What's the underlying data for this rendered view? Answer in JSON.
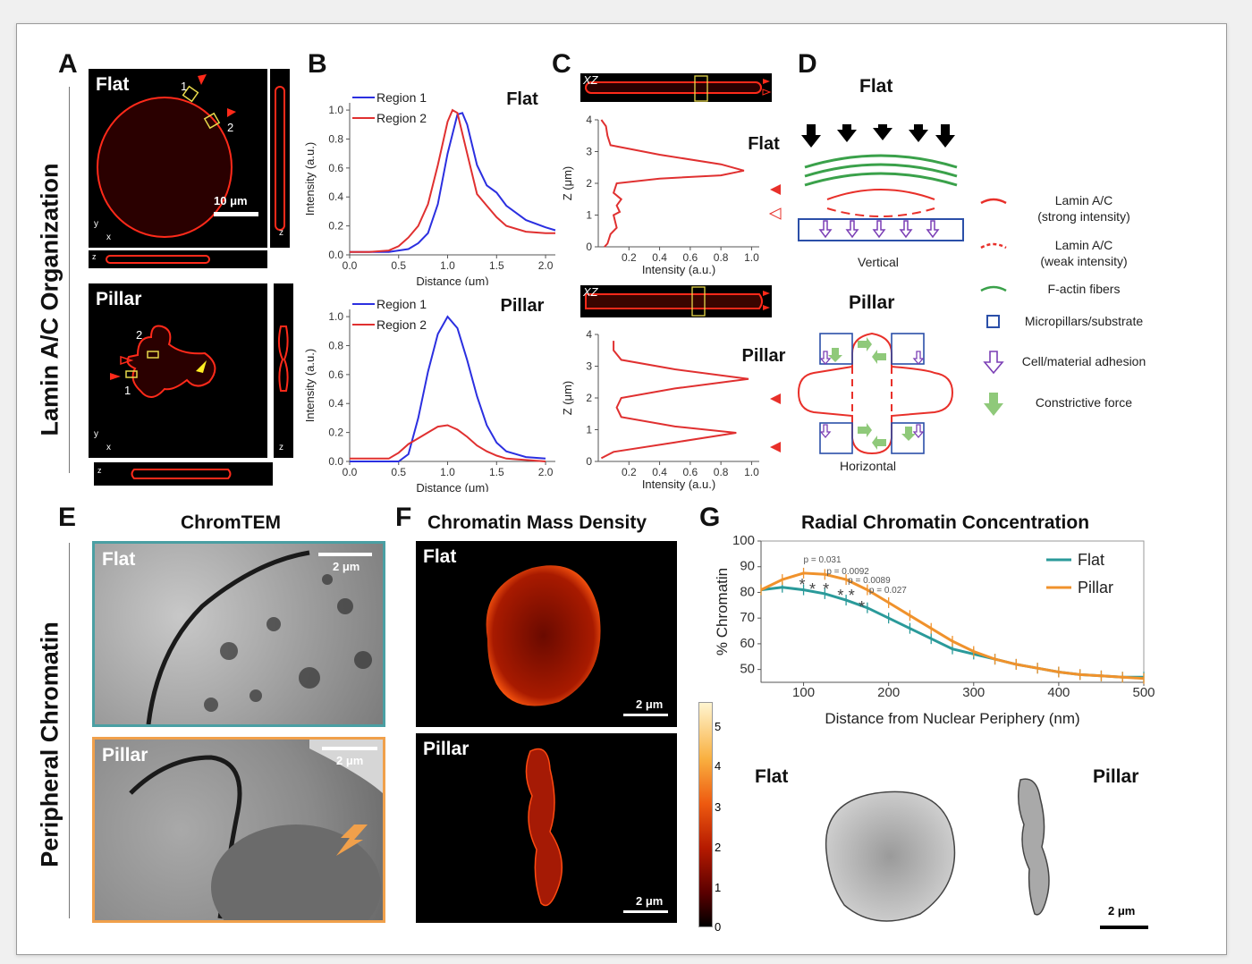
{
  "panels": {
    "A": "A",
    "B": "B",
    "C": "C",
    "D": "D",
    "E": "E",
    "F": "F",
    "G": "G"
  },
  "side_titles": {
    "top": "Lamin A/C Organization",
    "bottom": "Peripheral Chromatin"
  },
  "panel_a": {
    "flat_label": "Flat",
    "pillar_label": "Pillar",
    "scale": "10 μm",
    "region1": "1",
    "region2": "2",
    "axis_x": "x",
    "axis_y": "y",
    "axis_z": "z"
  },
  "panel_c": {
    "xz": "XZ"
  },
  "panel_d": {
    "flat_title": "Flat",
    "pillar_title": "Pillar",
    "vertical": "Vertical",
    "horizontal": "Horizontal",
    "legend": [
      {
        "line1": "Lamin A/C",
        "line2": "(strong intensity)",
        "icon": "solid-red-arc-icon"
      },
      {
        "line1": "Lamin A/C",
        "line2": "(weak intensity)",
        "icon": "dashed-red-arc-icon"
      },
      {
        "line1": "F-actin fibers",
        "line2": "",
        "icon": "green-arc-icon"
      },
      {
        "line1": "Micropillars/substrate",
        "line2": "",
        "icon": "blue-square-icon"
      },
      {
        "line1": "Cell/material adhesion",
        "line2": "",
        "icon": "purple-arrow-icon"
      },
      {
        "line1": "Constrictive force",
        "line2": "",
        "icon": "green-arrow-icon"
      }
    ],
    "colors": {
      "lamin": "#e8302a",
      "actin": "#3aa14a",
      "substrate": "#2b4fa8",
      "adhesion": "#7b3fb5",
      "force": "#8fc97a"
    }
  },
  "panel_e": {
    "title": "ChromTEM",
    "flat_label": "Flat",
    "pillar_label": "Pillar",
    "scale": "2 μm",
    "flat_border": "#4a9fa3",
    "pillar_border": "#f0a04b"
  },
  "panel_f": {
    "title": "Chromatin Mass Density",
    "flat_label": "Flat",
    "pillar_label": "Pillar",
    "scale": "2 μm",
    "colorbar_ticks": [
      "5",
      "4",
      "3",
      "2",
      "1",
      "0"
    ]
  },
  "panel_g": {
    "title": "Radial Chromatin Concentration",
    "flat_label": "Flat",
    "pillar_label": "Pillar",
    "scale": "2 μm"
  },
  "chart_data": [
    {
      "id": "B-flat",
      "type": "line",
      "title": "Flat",
      "xlabel": "Distance (μm)",
      "ylabel": "Intensity (a.u.)",
      "xlim": [
        0,
        2.1
      ],
      "ylim": [
        0,
        1.05
      ],
      "xticks": [
        "0.0",
        "0.5",
        "1.0",
        "1.5",
        "2.0"
      ],
      "yticks": [
        "0.0",
        "0.2",
        "0.4",
        "0.6",
        "0.8",
        "1.0"
      ],
      "legend": "top-left",
      "series": [
        {
          "name": "Region 1",
          "color": "#2b2fe0",
          "x": [
            0,
            0.2,
            0.4,
            0.6,
            0.7,
            0.8,
            0.9,
            1.0,
            1.1,
            1.15,
            1.2,
            1.3,
            1.4,
            1.5,
            1.6,
            1.8,
            2.0,
            2.1
          ],
          "y": [
            0.02,
            0.02,
            0.02,
            0.04,
            0.08,
            0.15,
            0.35,
            0.7,
            0.97,
            0.98,
            0.9,
            0.62,
            0.48,
            0.43,
            0.34,
            0.24,
            0.19,
            0.17
          ]
        },
        {
          "name": "Region 2",
          "color": "#e03030",
          "x": [
            0,
            0.2,
            0.4,
            0.5,
            0.6,
            0.7,
            0.8,
            0.9,
            1.0,
            1.05,
            1.1,
            1.2,
            1.3,
            1.4,
            1.5,
            1.6,
            1.8,
            2.0,
            2.1
          ],
          "y": [
            0.02,
            0.02,
            0.03,
            0.06,
            0.12,
            0.2,
            0.35,
            0.62,
            0.92,
            1.0,
            0.98,
            0.7,
            0.42,
            0.34,
            0.26,
            0.2,
            0.16,
            0.15,
            0.15
          ]
        }
      ]
    },
    {
      "id": "B-pillar",
      "type": "line",
      "title": "Pillar",
      "xlabel": "Distance (μm)",
      "ylabel": "Intensity (a.u.)",
      "xlim": [
        0,
        2.1
      ],
      "ylim": [
        0,
        1.05
      ],
      "xticks": [
        "0.0",
        "0.5",
        "1.0",
        "1.5",
        "2.0"
      ],
      "yticks": [
        "0.0",
        "0.2",
        "0.4",
        "0.6",
        "0.8",
        "1.0"
      ],
      "legend": "top-left",
      "series": [
        {
          "name": "Region 1",
          "color": "#2b2fe0",
          "x": [
            0,
            0.4,
            0.5,
            0.6,
            0.7,
            0.8,
            0.9,
            1.0,
            1.1,
            1.2,
            1.3,
            1.4,
            1.5,
            1.6,
            1.8,
            2.0
          ],
          "y": [
            0,
            0,
            0,
            0.05,
            0.3,
            0.62,
            0.88,
            1.0,
            0.92,
            0.7,
            0.45,
            0.25,
            0.13,
            0.07,
            0.03,
            0.02
          ]
        },
        {
          "name": "Region 2",
          "color": "#e03030",
          "x": [
            0,
            0.3,
            0.4,
            0.5,
            0.6,
            0.7,
            0.8,
            0.9,
            1.0,
            1.1,
            1.2,
            1.3,
            1.4,
            1.5,
            1.6,
            1.8,
            2.0
          ],
          "y": [
            0.02,
            0.02,
            0.02,
            0.06,
            0.12,
            0.16,
            0.2,
            0.24,
            0.25,
            0.22,
            0.17,
            0.11,
            0.07,
            0.04,
            0.02,
            0.01,
            0.0
          ]
        }
      ]
    },
    {
      "id": "C-flat",
      "type": "line",
      "title": "Flat",
      "xlabel": "Intensity (a.u.)",
      "ylabel": "Z (μm)",
      "xlim": [
        0,
        1.05
      ],
      "ylim": [
        0,
        4
      ],
      "xticks": [
        "0.2",
        "0.4",
        "0.6",
        "0.8",
        "1.0"
      ],
      "yticks": [
        "0",
        "1",
        "2",
        "3",
        "4"
      ],
      "series": [
        {
          "name": "",
          "color": "#e03030",
          "x": [
            0.02,
            0.05,
            0.06,
            0.08,
            0.4,
            0.8,
            0.95,
            0.8,
            0.4,
            0.12,
            0.1,
            0.15,
            0.12,
            0.14,
            0.1,
            0.12,
            0.08,
            0.06,
            0.04
          ],
          "y": [
            4.0,
            3.8,
            3.5,
            3.2,
            2.9,
            2.6,
            2.4,
            2.25,
            2.15,
            2.0,
            1.7,
            1.5,
            1.3,
            1.1,
            1.0,
            0.6,
            0.4,
            0.1,
            0.0
          ]
        }
      ]
    },
    {
      "id": "C-pillar",
      "type": "line",
      "title": "Pillar",
      "xlabel": "Intensity (a.u.)",
      "ylabel": "Z (μm)",
      "xlim": [
        0,
        1.05
      ],
      "ylim": [
        0,
        4
      ],
      "xticks": [
        "0.2",
        "0.4",
        "0.6",
        "0.8",
        "1.0"
      ],
      "yticks": [
        "0",
        "1",
        "2",
        "3",
        "4"
      ],
      "series": [
        {
          "name": "",
          "color": "#e03030",
          "x": [
            0.1,
            0.1,
            0.15,
            0.5,
            0.98,
            0.5,
            0.15,
            0.12,
            0.15,
            0.5,
            0.9,
            0.5,
            0.1,
            0.02
          ],
          "y": [
            3.8,
            3.5,
            3.2,
            2.9,
            2.6,
            2.3,
            2.0,
            1.7,
            1.4,
            1.1,
            0.9,
            0.6,
            0.3,
            0.1
          ]
        }
      ]
    },
    {
      "id": "G",
      "type": "line",
      "title": "Radial Chromatin Concentration",
      "xlabel": "Distance from Nuclear Periphery (nm)",
      "ylabel": "% Chromatin",
      "xlim": [
        50,
        500
      ],
      "ylim": [
        45,
        100
      ],
      "xticks": [
        "100",
        "200",
        "300",
        "400",
        "500"
      ],
      "yticks": [
        "50",
        "60",
        "70",
        "80",
        "90",
        "100"
      ],
      "legend": "top-right",
      "annotations": [
        "p = 0.031",
        "p = 0.0092",
        "p = 0.0089",
        "p = 0.027"
      ],
      "series": [
        {
          "name": "Flat",
          "color": "#2a9a9a",
          "x": [
            50,
            75,
            100,
            125,
            150,
            175,
            200,
            225,
            250,
            275,
            300,
            325,
            350,
            375,
            400,
            425,
            450,
            475,
            500
          ],
          "y": [
            81,
            82,
            81,
            79.5,
            77,
            74,
            70,
            66,
            62,
            58,
            56,
            54,
            52,
            50.5,
            49,
            48,
            47.5,
            47,
            47
          ]
        },
        {
          "name": "Pillar",
          "color": "#f0922c",
          "x": [
            50,
            75,
            100,
            125,
            150,
            175,
            200,
            225,
            250,
            275,
            300,
            325,
            350,
            375,
            400,
            425,
            450,
            475,
            500
          ],
          "y": [
            81,
            85,
            87.5,
            87,
            85,
            81,
            76,
            71,
            66,
            61,
            57,
            54,
            52,
            50.5,
            49,
            48,
            47.5,
            47,
            46.5
          ]
        }
      ]
    }
  ]
}
